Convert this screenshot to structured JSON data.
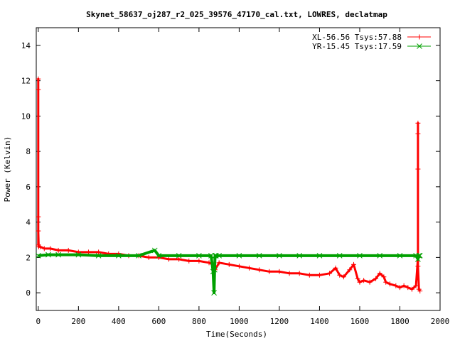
{
  "chart_data": {
    "type": "line",
    "title": "Skynet_58637_oj287_r2_025_39576_47170_cal.txt, LOWRES, declatmap",
    "xlabel": "Time(Seconds)",
    "ylabel": "Power (Kelvin)",
    "xlim": [
      -10,
      2000
    ],
    "ylim": [
      -1,
      15
    ],
    "xticks": [
      0,
      200,
      400,
      600,
      800,
      1000,
      1200,
      1400,
      1600,
      1800,
      2000
    ],
    "yticks": [
      0,
      2,
      4,
      6,
      8,
      10,
      12,
      14
    ],
    "grid": false,
    "legend_position": "top-right",
    "series": [
      {
        "name": "XL-56.56 Tsys:57.88",
        "color": "#ff0000",
        "marker": "+",
        "x": [
          0,
          0,
          0,
          0,
          0,
          2,
          10,
          30,
          60,
          100,
          150,
          200,
          250,
          300,
          350,
          400,
          450,
          500,
          550,
          600,
          650,
          700,
          750,
          800,
          850,
          870,
          880,
          900,
          950,
          1000,
          1050,
          1100,
          1150,
          1200,
          1250,
          1300,
          1350,
          1400,
          1450,
          1480,
          1500,
          1520,
          1550,
          1570,
          1590,
          1600,
          1620,
          1650,
          1680,
          1700,
          1720,
          1730,
          1750,
          1780,
          1800,
          1820,
          1840,
          1860,
          1880,
          1890,
          1890,
          1890,
          1890,
          1890,
          1895,
          1900
        ],
        "y": [
          2.7,
          4.3,
          12.1,
          11.5,
          3.5,
          2.6,
          2.6,
          2.5,
          2.5,
          2.4,
          2.4,
          2.3,
          2.3,
          2.3,
          2.2,
          2.2,
          2.1,
          2.1,
          2.0,
          2.0,
          1.9,
          1.9,
          1.8,
          1.8,
          1.7,
          1.6,
          1.3,
          1.7,
          1.6,
          1.5,
          1.4,
          1.3,
          1.2,
          1.2,
          1.1,
          1.1,
          1.0,
          1.0,
          1.1,
          1.4,
          1.0,
          0.9,
          1.3,
          1.6,
          0.8,
          0.6,
          0.7,
          0.6,
          0.8,
          1.1,
          0.9,
          0.6,
          0.5,
          0.4,
          0.3,
          0.4,
          0.3,
          0.2,
          0.4,
          2.0,
          9.6,
          9.0,
          7.0,
          1.5,
          0.2,
          0.1
        ]
      },
      {
        "name": "YR-15.45 Tsys:17.59",
        "color": "#00a000",
        "marker": "x",
        "x": [
          0,
          50,
          100,
          200,
          300,
          400,
          500,
          580,
          600,
          700,
          800,
          860,
          870,
          875,
          878,
          880,
          885,
          900,
          1000,
          1100,
          1200,
          1300,
          1400,
          1500,
          1600,
          1700,
          1800,
          1880,
          1890,
          1895,
          1900
        ],
        "y": [
          2.1,
          2.15,
          2.15,
          2.15,
          2.1,
          2.1,
          2.1,
          2.4,
          2.1,
          2.1,
          2.1,
          2.1,
          1.2,
          0.0,
          1.3,
          2.1,
          2.1,
          2.1,
          2.1,
          2.1,
          2.1,
          2.1,
          2.1,
          2.1,
          2.1,
          2.1,
          2.1,
          2.1,
          1.9,
          2.1,
          2.1
        ]
      }
    ]
  }
}
